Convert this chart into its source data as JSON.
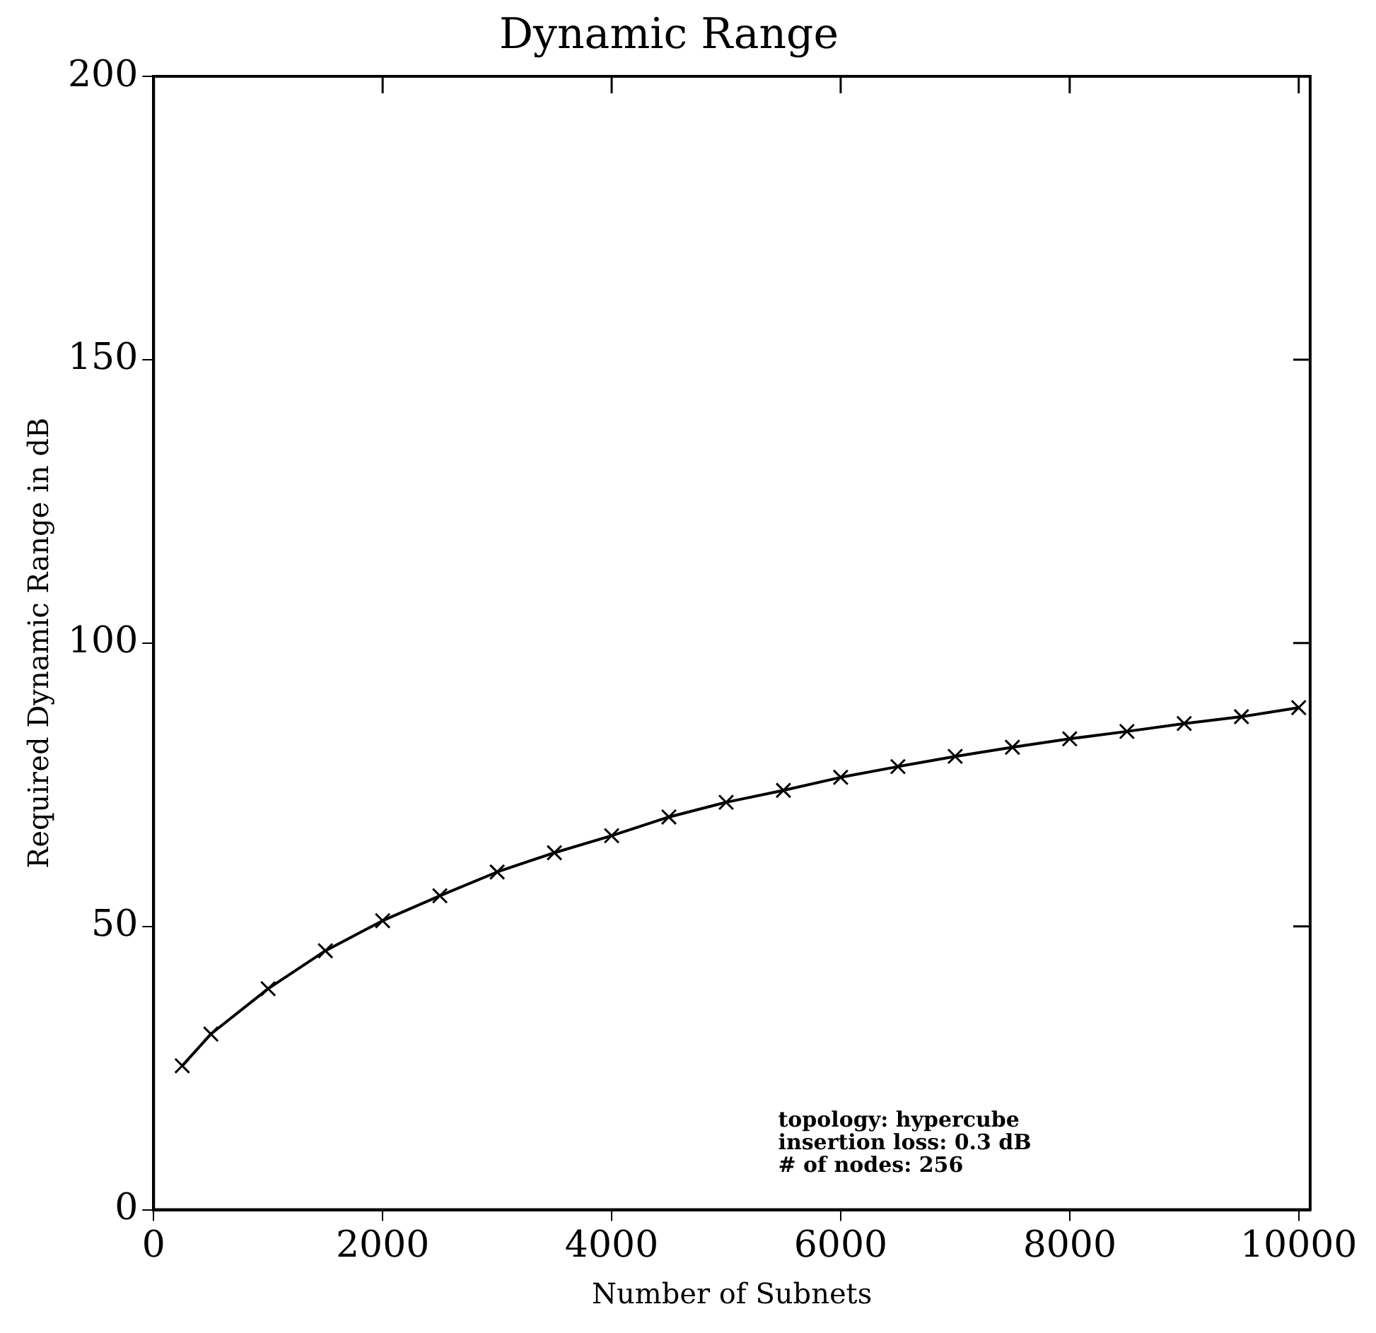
{
  "chart_data": {
    "type": "line",
    "title": "Dynamic Range",
    "xlabel": "Number of Subnets",
    "ylabel": "Required Dynamic Range in dB",
    "x": [
      250,
      500,
      1000,
      1500,
      2000,
      2500,
      3000,
      3500,
      4000,
      4500,
      5000,
      5500,
      6000,
      6500,
      7000,
      7500,
      8000,
      8500,
      9000,
      9500,
      10000
    ],
    "series": [
      {
        "color": "#000000",
        "values": [
          25.4,
          31,
          39,
          45.7,
          51,
          55.4,
          59.6,
          63,
          66,
          69.3,
          71.9,
          74,
          76.3,
          78.2,
          80,
          81.6,
          83.1,
          84.4,
          85.8,
          87,
          88.6
        ]
      }
    ],
    "xlim": [
      0,
      10100
    ],
    "xticks": [
      0,
      2000,
      4000,
      6000,
      8000,
      10000
    ],
    "ylim": [
      0,
      200
    ],
    "yticks": [
      0,
      50,
      100,
      150,
      200
    ],
    "grid": false,
    "legend": false,
    "marker": "cross",
    "line_style": "solid",
    "annotations": [
      "topology: hypercube",
      "insertion loss: 0.3 dB",
      "# of nodes: 256"
    ]
  }
}
